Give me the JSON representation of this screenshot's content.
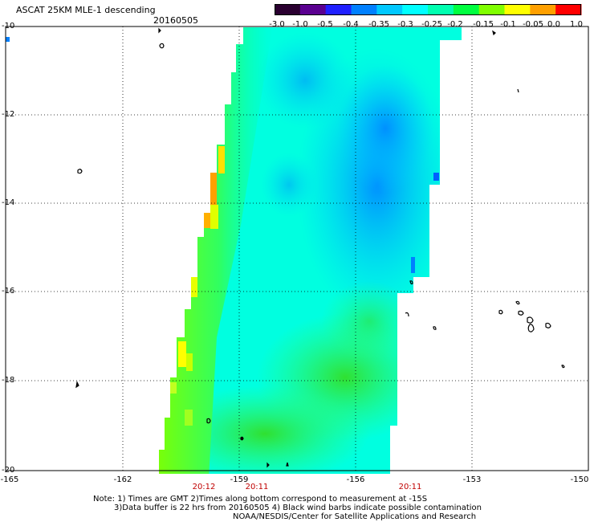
{
  "header": {
    "title": "ASCAT 25KM MLE-1 descending",
    "date": "20160505"
  },
  "colorbar": {
    "labels": [
      "-3.0",
      "-1.0",
      "-0.5",
      "-0.4",
      "-0.35",
      "-0.3",
      "-0.25",
      "-0.2",
      "-0.15",
      "-0.1",
      "-0.05",
      "0.0",
      "1.0"
    ],
    "colors": [
      "#2a0030",
      "#5a0090",
      "#2020ff",
      "#0080ff",
      "#00c8ff",
      "#00ffff",
      "#00ffb0",
      "#00ff40",
      "#80ff00",
      "#ffff00",
      "#ffa000",
      "#ff0000"
    ]
  },
  "map": {
    "lat_ticks": [
      "-10",
      "-12",
      "-14",
      "-16",
      "-18",
      "-20"
    ],
    "lon_ticks": [
      "-165",
      "-162",
      "-159",
      "-156",
      "-153",
      "-150"
    ],
    "time_labels": [
      "20:12",
      "20:11",
      "20:11"
    ]
  },
  "notes": {
    "line1": "Note: 1) Times are GMT 2)Times along bottom correspond to measurement at -15S",
    "line2": "3)Data buffer is 22 hrs from 20160505 4) Black wind barbs indicate possible contamination",
    "line3": "NOAA/NESDIS/Center for Satellite Applications and Research"
  }
}
